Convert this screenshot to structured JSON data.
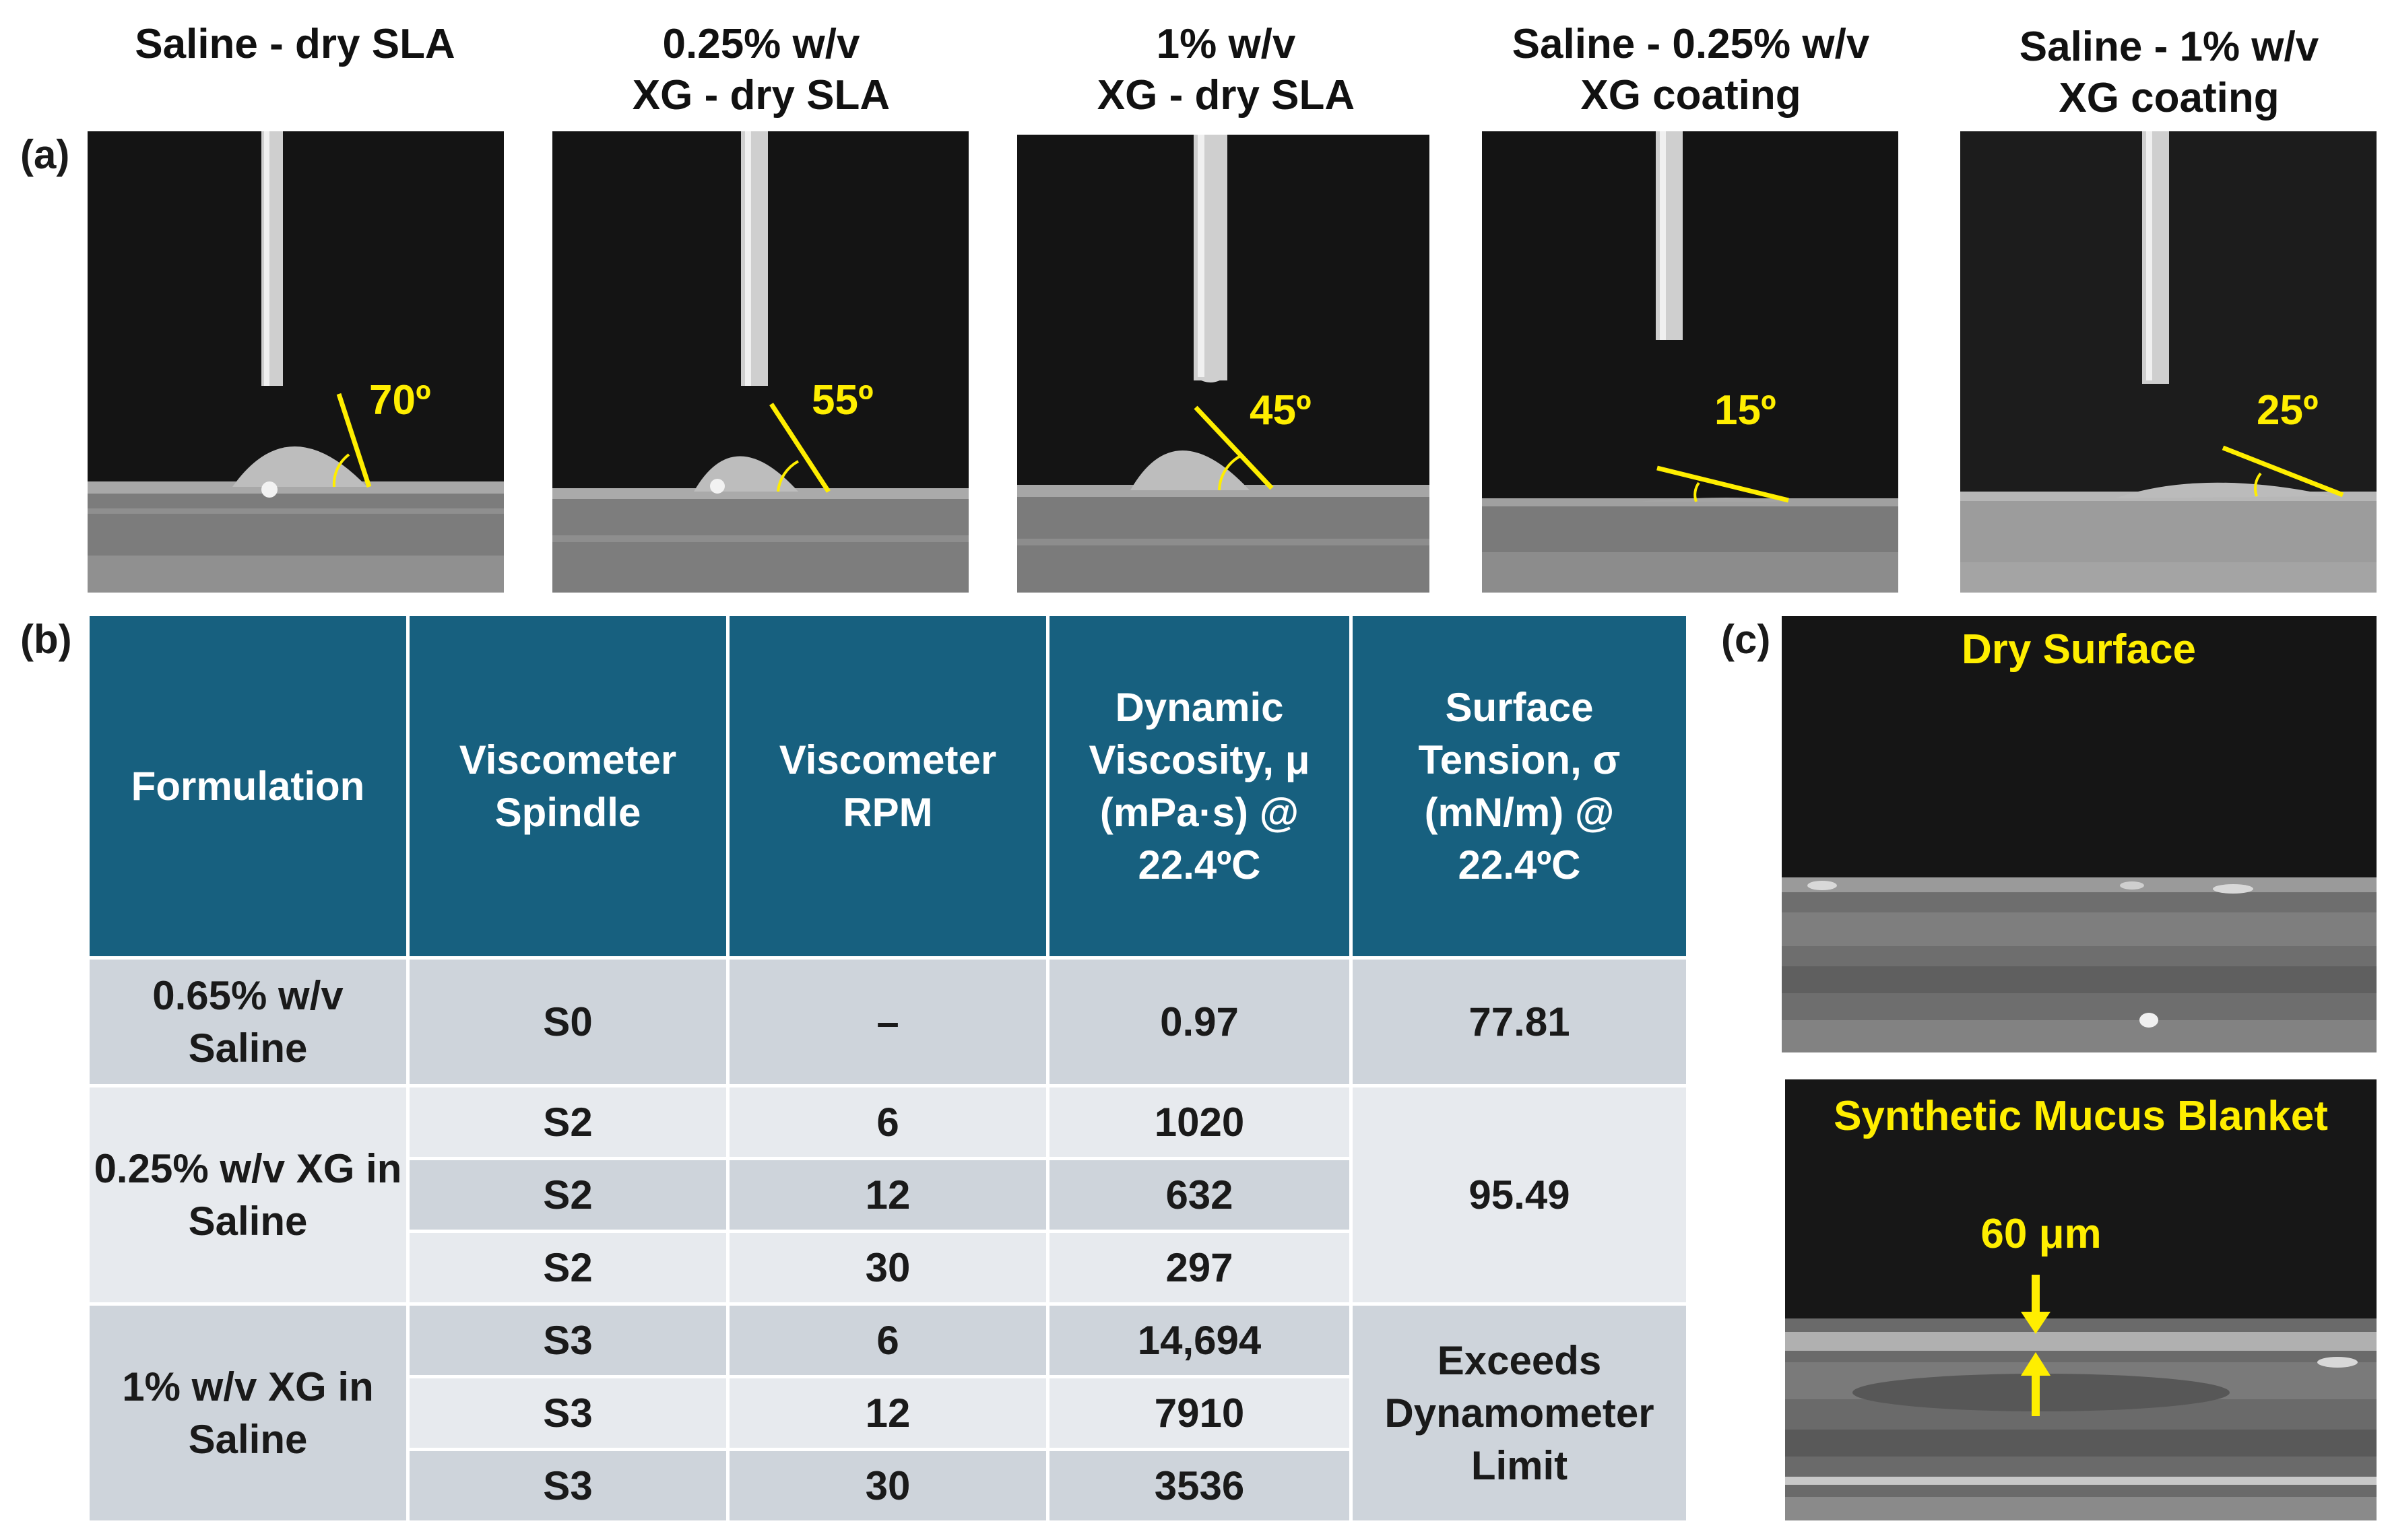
{
  "panel_labels": {
    "a": "(a)",
    "b": "(b)",
    "c": "(c)"
  },
  "contact_angle_panels": [
    {
      "line1": "",
      "line2": "Saline - dry SLA",
      "angle": "70º"
    },
    {
      "line1": "0.25% w/v",
      "line2": "XG - dry SLA",
      "angle": "55º"
    },
    {
      "line1": "1% w/v",
      "line2": "XG - dry SLA",
      "angle": "45º"
    },
    {
      "line1": "Saline - 0.25% w/v",
      "line2": "XG coating",
      "angle": "15º"
    },
    {
      "line1": "Saline - 1% w/v",
      "line2": "XG coating",
      "angle": "25º"
    }
  ],
  "table": {
    "headers": {
      "formulation": "Formulation",
      "spindle": "Viscometer Spindle",
      "rpm": "Viscometer RPM",
      "viscosity": "Dynamic Viscosity, μ (mPa·s) @ 22.4ºC",
      "tension": "Surface Tension, σ (mN/m) @ 22.4ºC"
    },
    "groups": [
      {
        "formulation": "0.65% w/v Saline",
        "tension": "77.81",
        "rows": [
          {
            "spindle": "S0",
            "rpm": "–",
            "viscosity": "0.97"
          }
        ]
      },
      {
        "formulation": "0.25% w/v XG in Saline",
        "tension": "95.49",
        "rows": [
          {
            "spindle": "S2",
            "rpm": "6",
            "viscosity": "1020"
          },
          {
            "spindle": "S2",
            "rpm": "12",
            "viscosity": "632"
          },
          {
            "spindle": "S2",
            "rpm": "30",
            "viscosity": "297"
          }
        ]
      },
      {
        "formulation": "1% w/v XG in Saline",
        "tension": "Exceeds Dynamometer Limit",
        "rows": [
          {
            "spindle": "S3",
            "rpm": "6",
            "viscosity": "14,694"
          },
          {
            "spindle": "S3",
            "rpm": "12",
            "viscosity": "7910"
          },
          {
            "spindle": "S3",
            "rpm": "30",
            "viscosity": "3536"
          }
        ]
      }
    ]
  },
  "cross_sections": {
    "dry_title": "Dry Surface",
    "mucus_title": "Synthetic Mucus Blanket",
    "thickness": "60 μm"
  },
  "colors": {
    "header_bg": "#17607f",
    "annotation": "#ffee00",
    "row_dark": "#ced4db",
    "row_light": "#e7eaee"
  }
}
